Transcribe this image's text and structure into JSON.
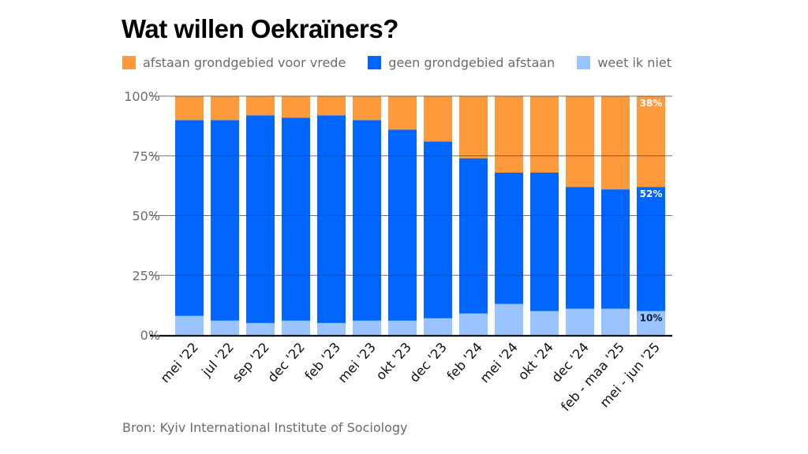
{
  "title": "Wat willen Oekraïners?",
  "source": "Bron: Kyiv International Institute of Sociology",
  "colors": {
    "afstaan": "#FF9A3C",
    "geen": "#0066FF",
    "weet_niet": "#99C4FF",
    "text_muted": "#6b6b6b",
    "gridline": "#444444"
  },
  "legend": [
    {
      "label": "afstaan grondgebied voor vrede",
      "color": "#FF9A3C"
    },
    {
      "label": "geen grondgebied afstaan",
      "color": "#0066FF"
    },
    {
      "label": "weet ik niet",
      "color": "#99C4FF"
    }
  ],
  "chart_data": {
    "type": "bar",
    "stacked": true,
    "title": "Wat willen Oekraïners?",
    "xlabel": "",
    "ylabel": "",
    "ylim": [
      0,
      100
    ],
    "y_ticks": [
      0,
      25,
      50,
      75,
      100
    ],
    "y_tick_labels": [
      "0%",
      "25%",
      "50%",
      "75%",
      "100%"
    ],
    "grid": true,
    "legend_position": "top-left",
    "categories": [
      "mei '22",
      "jul '22",
      "sep '22",
      "dec '22",
      "feb '23",
      "mei '23",
      "okt '23",
      "dec '23",
      "feb '24",
      "mei '24",
      "okt '24",
      "dec '24",
      "feb - maa '25",
      "mei - jun '25"
    ],
    "series": [
      {
        "name": "weet ik niet",
        "color": "#99C4FF",
        "values": [
          8,
          6,
          5,
          6,
          5,
          6,
          6,
          7,
          9,
          13,
          10,
          11,
          11,
          10
        ]
      },
      {
        "name": "geen grondgebied afstaan",
        "color": "#0066FF",
        "values": [
          82,
          84,
          87,
          85,
          87,
          84,
          80,
          74,
          65,
          55,
          58,
          51,
          50,
          52
        ]
      },
      {
        "name": "afstaan grondgebied voor vrede",
        "color": "#FF9A3C",
        "values": [
          10,
          10,
          8,
          9,
          8,
          10,
          14,
          19,
          26,
          32,
          32,
          38,
          39,
          38
        ]
      }
    ],
    "annotations": [
      {
        "category": "mei - jun '25",
        "series": "afstaan grondgebied voor vrede",
        "text": "38%"
      },
      {
        "category": "mei - jun '25",
        "series": "geen grondgebied afstaan",
        "text": "52%"
      },
      {
        "category": "mei - jun '25",
        "series": "weet ik niet",
        "text": "10%"
      }
    ]
  }
}
